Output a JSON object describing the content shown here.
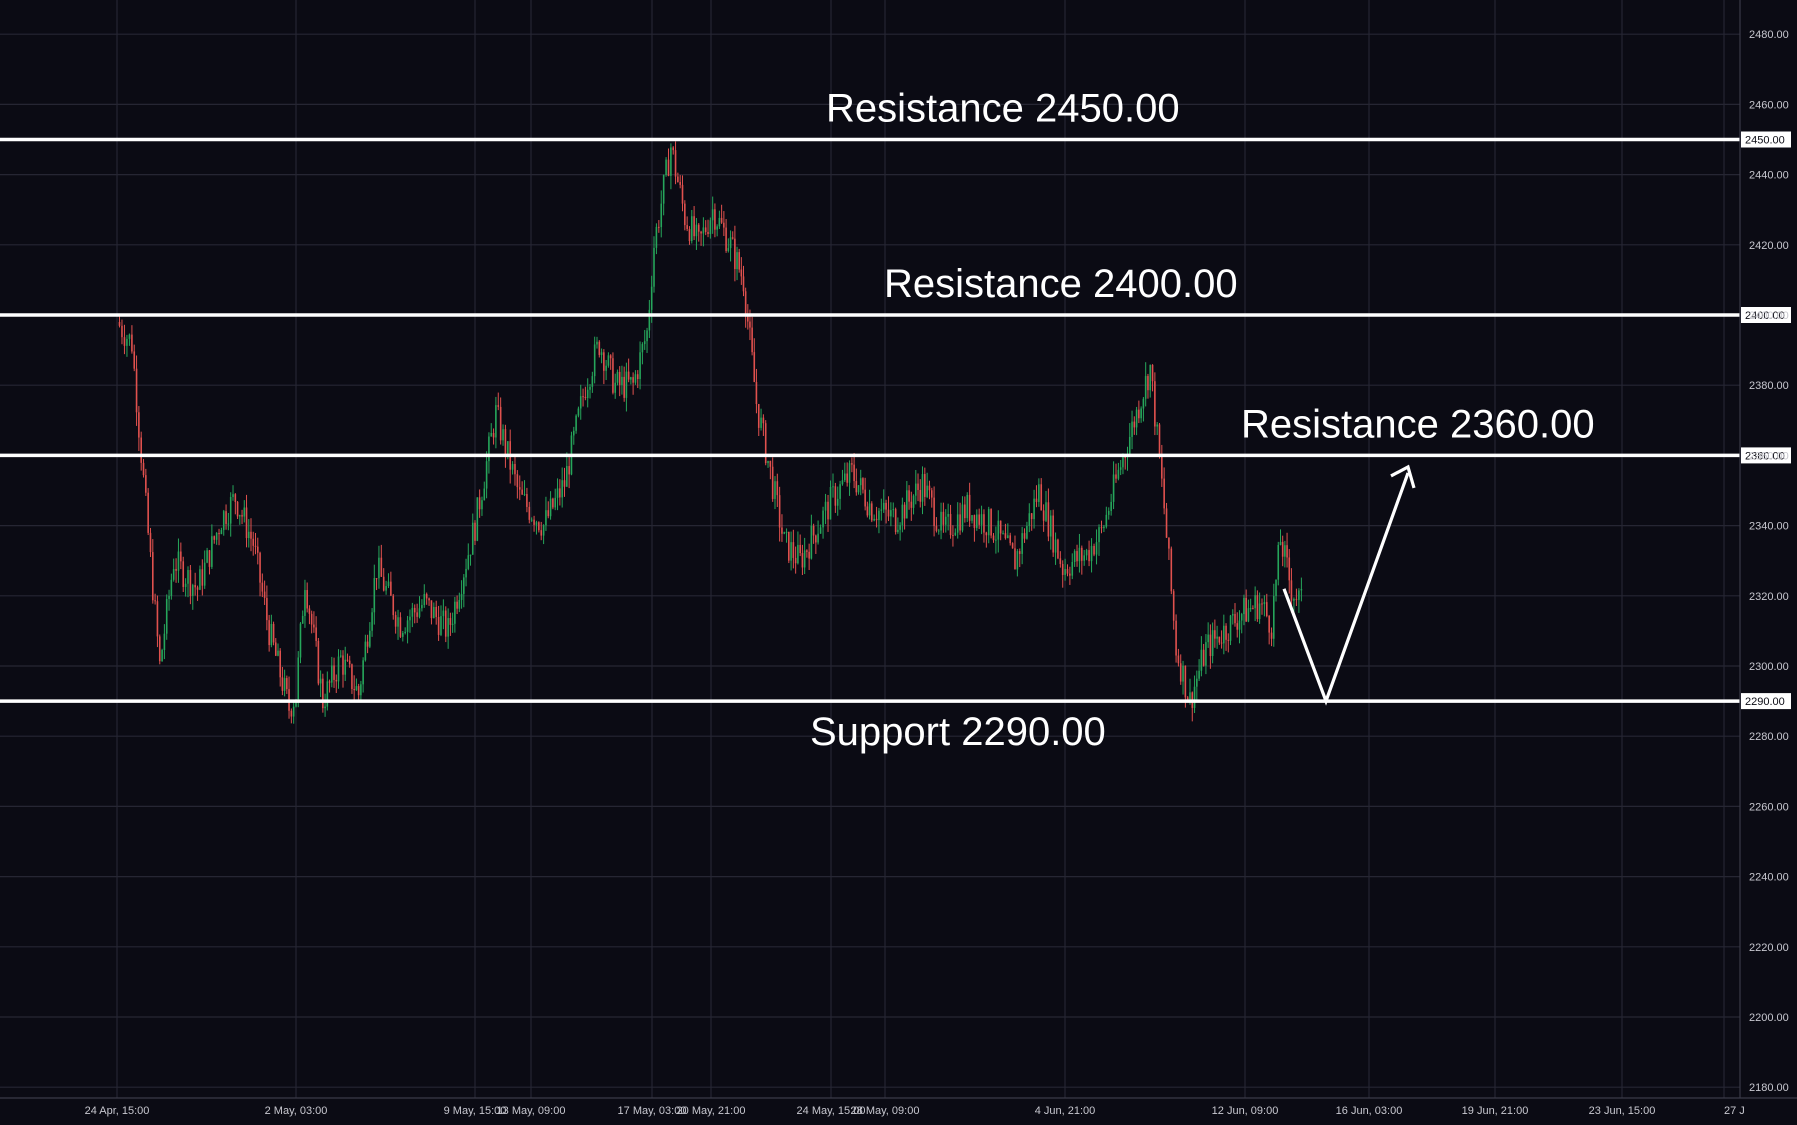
{
  "chart_data": {
    "type": "candlestick",
    "title": "",
    "xlabel": "",
    "ylabel": "",
    "ylim": [
      2175,
      2490
    ],
    "y_ticks": [
      2180,
      2200,
      2220,
      2240,
      2260,
      2280,
      2300,
      2320,
      2340,
      2360,
      2380,
      2400,
      2420,
      2440,
      2460,
      2480
    ],
    "y_tick_labels": [
      "2180.00",
      "2200.00",
      "2220.00",
      "2240.00",
      "2260.00",
      "2280.00",
      "2300.00",
      "2320.00",
      "2340.00",
      "2360.00",
      "2380.00",
      "2400.00",
      "2420.00",
      "2440.00",
      "2460.00",
      "2480.00"
    ],
    "x_ticks": [
      "24 Apr, 15:00",
      "2 May, 03:00",
      "9 May, 15:00",
      "13 May, 09:00",
      "17 May, 03:00",
      "20 May, 21:00",
      "24 May, 15:00",
      "28 May, 09:00",
      "4 Jun, 21:00",
      "12 Jun, 09:00",
      "16 Jun, 03:00",
      "19 Jun, 21:00",
      "23 Jun, 15:00",
      "27 J"
    ],
    "grid": true,
    "colors": {
      "background": "#0b0b14",
      "grid": "#262633",
      "up": "#26a65b",
      "down": "#e0514e",
      "annotation": "#ffffff",
      "axis_text": "#c8c8d0"
    },
    "levels": [
      {
        "value": 2450,
        "label": "Resistance 2450.00",
        "tag": "2450.00"
      },
      {
        "value": 2400,
        "label": "Resistance 2400.00",
        "tag": "2400.00"
      },
      {
        "value": 2360,
        "label": "Resistance 2360.00",
        "tag": "2360.00"
      },
      {
        "value": 2290,
        "label": "Support 2290.00",
        "tag": "2290.00"
      }
    ],
    "price_path": [
      [
        "24 Apr, 15:00",
        2398
      ],
      [
        "25 Apr, 06:00",
        2392
      ],
      [
        "25 Apr, 20:00",
        2345
      ],
      [
        "26 Apr, 10:00",
        2300
      ],
      [
        "27 Apr, 00:00",
        2330
      ],
      [
        "28 Apr, 00:00",
        2322
      ],
      [
        "29 Apr, 00:00",
        2342
      ],
      [
        "29 Apr, 14:00",
        2348
      ],
      [
        "30 Apr, 08:00",
        2335
      ],
      [
        "1 May, 00:00",
        2310
      ],
      [
        "1 May, 20:00",
        2288
      ],
      [
        "2 May, 03:00",
        2292
      ],
      [
        "2 May, 12:00",
        2325
      ],
      [
        "3 May, 06:00",
        2290
      ],
      [
        "4 May, 00:00",
        2302
      ],
      [
        "4 May, 18:00",
        2292
      ],
      [
        "5 May, 12:00",
        2328
      ],
      [
        "6 May, 12:00",
        2312
      ],
      [
        "7 May, 12:00",
        2318
      ],
      [
        "8 May, 12:00",
        2310
      ],
      [
        "9 May, 15:00",
        2340
      ],
      [
        "10 May, 12:00",
        2372
      ],
      [
        "11 May, 12:00",
        2348
      ],
      [
        "12 May, 12:00",
        2340
      ],
      [
        "13 May, 09:00",
        2352
      ],
      [
        "14 May, 06:00",
        2380
      ],
      [
        "14 May, 20:00",
        2392
      ],
      [
        "15 May, 12:00",
        2380
      ],
      [
        "16 May, 06:00",
        2380
      ],
      [
        "16 May, 20:00",
        2395
      ],
      [
        "17 May, 03:00",
        2420
      ],
      [
        "17 May, 20:00",
        2448
      ],
      [
        "18 May, 10:00",
        2428
      ],
      [
        "19 May, 00:00",
        2420
      ],
      [
        "19 May, 14:00",
        2430
      ],
      [
        "20 May, 08:00",
        2420
      ],
      [
        "20 May, 21:00",
        2410
      ],
      [
        "21 May, 10:00",
        2375
      ],
      [
        "22 May, 00:00",
        2355
      ],
      [
        "22 May, 14:00",
        2335
      ],
      [
        "23 May, 06:00",
        2330
      ],
      [
        "24 May, 00:00",
        2340
      ],
      [
        "24 May, 15:00",
        2348
      ],
      [
        "25 May, 10:00",
        2355
      ],
      [
        "26 May, 06:00",
        2345
      ],
      [
        "27 May, 06:00",
        2342
      ],
      [
        "28 May, 09:00",
        2352
      ],
      [
        "29 May, 06:00",
        2338
      ],
      [
        "30 May, 06:00",
        2345
      ],
      [
        "31 May, 06:00",
        2340
      ],
      [
        "1 Jun, 06:00",
        2330
      ],
      [
        "2 Jun, 06:00",
        2350
      ],
      [
        "3 Jun, 06:00",
        2328
      ],
      [
        "4 Jun, 06:00",
        2332
      ],
      [
        "4 Jun, 21:00",
        2338
      ],
      [
        "5 Jun, 14:00",
        2355
      ],
      [
        "6 Jun, 06:00",
        2370
      ],
      [
        "6 Jun, 22:00",
        2385
      ],
      [
        "7 Jun, 12:00",
        2345
      ],
      [
        "8 Jun, 00:00",
        2305
      ],
      [
        "8 Jun, 14:00",
        2290
      ],
      [
        "9 Jun, 06:00",
        2305
      ],
      [
        "10 Jun, 00:00",
        2310
      ],
      [
        "10 Jun, 18:00",
        2315
      ],
      [
        "11 Jun, 12:00",
        2318
      ],
      [
        "12 Jun, 00:00",
        2312
      ],
      [
        "12 Jun, 09:00",
        2336
      ],
      [
        "12 Jun, 20:00",
        2322
      ],
      [
        "13 Jun, 06:00",
        2318
      ]
    ],
    "projection": [
      [
        "13 Jun, 06:00",
        2322
      ],
      [
        "14 Jun, 06:00",
        2292
      ],
      [
        "16 Jun, 03:00",
        2353
      ]
    ]
  }
}
